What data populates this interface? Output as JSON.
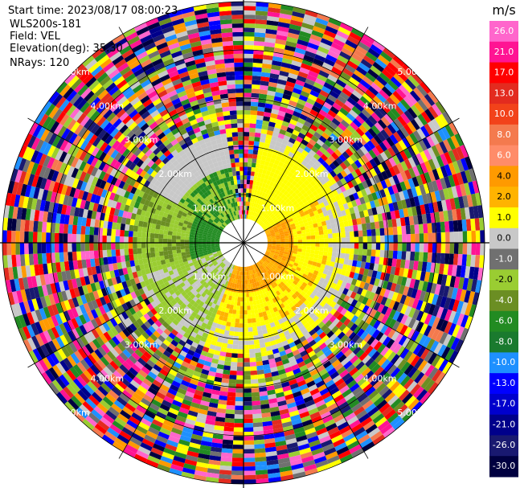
{
  "header": {
    "start_time": "Start time: 2023/08/17 08:00:23",
    "instrument": "WLS200s-181",
    "field": "Field: VEL",
    "elevation": "Elevation(deg): 35.30",
    "nrays": "NRays: 120"
  },
  "chart_data": {
    "type": "heatmap",
    "projection": "polar PPI",
    "range_ring_labels": [
      "1.00km",
      "2.00km",
      "3.00km",
      "4.00km",
      "5.00km"
    ],
    "range_rings_km": [
      1,
      2,
      3,
      4,
      5
    ],
    "colorbar": {
      "unit": "m/s",
      "ticks": [
        "26.0",
        "21.0",
        "17.0",
        "13.0",
        "10.0",
        "8.0",
        "6.0",
        "4.0",
        "2.0",
        "1.0",
        "0.0",
        "-1.0",
        "-2.0",
        "-4.0",
        "-6.0",
        "-8.0",
        "-10.0",
        "-13.0",
        "-17.0",
        "-21.0",
        "-26.0",
        "-30.0"
      ],
      "colors": [
        "#ff66cc",
        "#ff1493",
        "#ff0000",
        "#e32b1f",
        "#f2421a",
        "#f47a4e",
        "#ff8c69",
        "#ff9a00",
        "#ffb300",
        "#ffff00",
        "#c8c8c8",
        "#707070",
        "#9acd32",
        "#6b8e23",
        "#228b22",
        "#1a7a2e",
        "#1e90ff",
        "#0000ff",
        "#0000cd",
        "#00008b",
        "#191970",
        "#000040"
      ]
    }
  }
}
